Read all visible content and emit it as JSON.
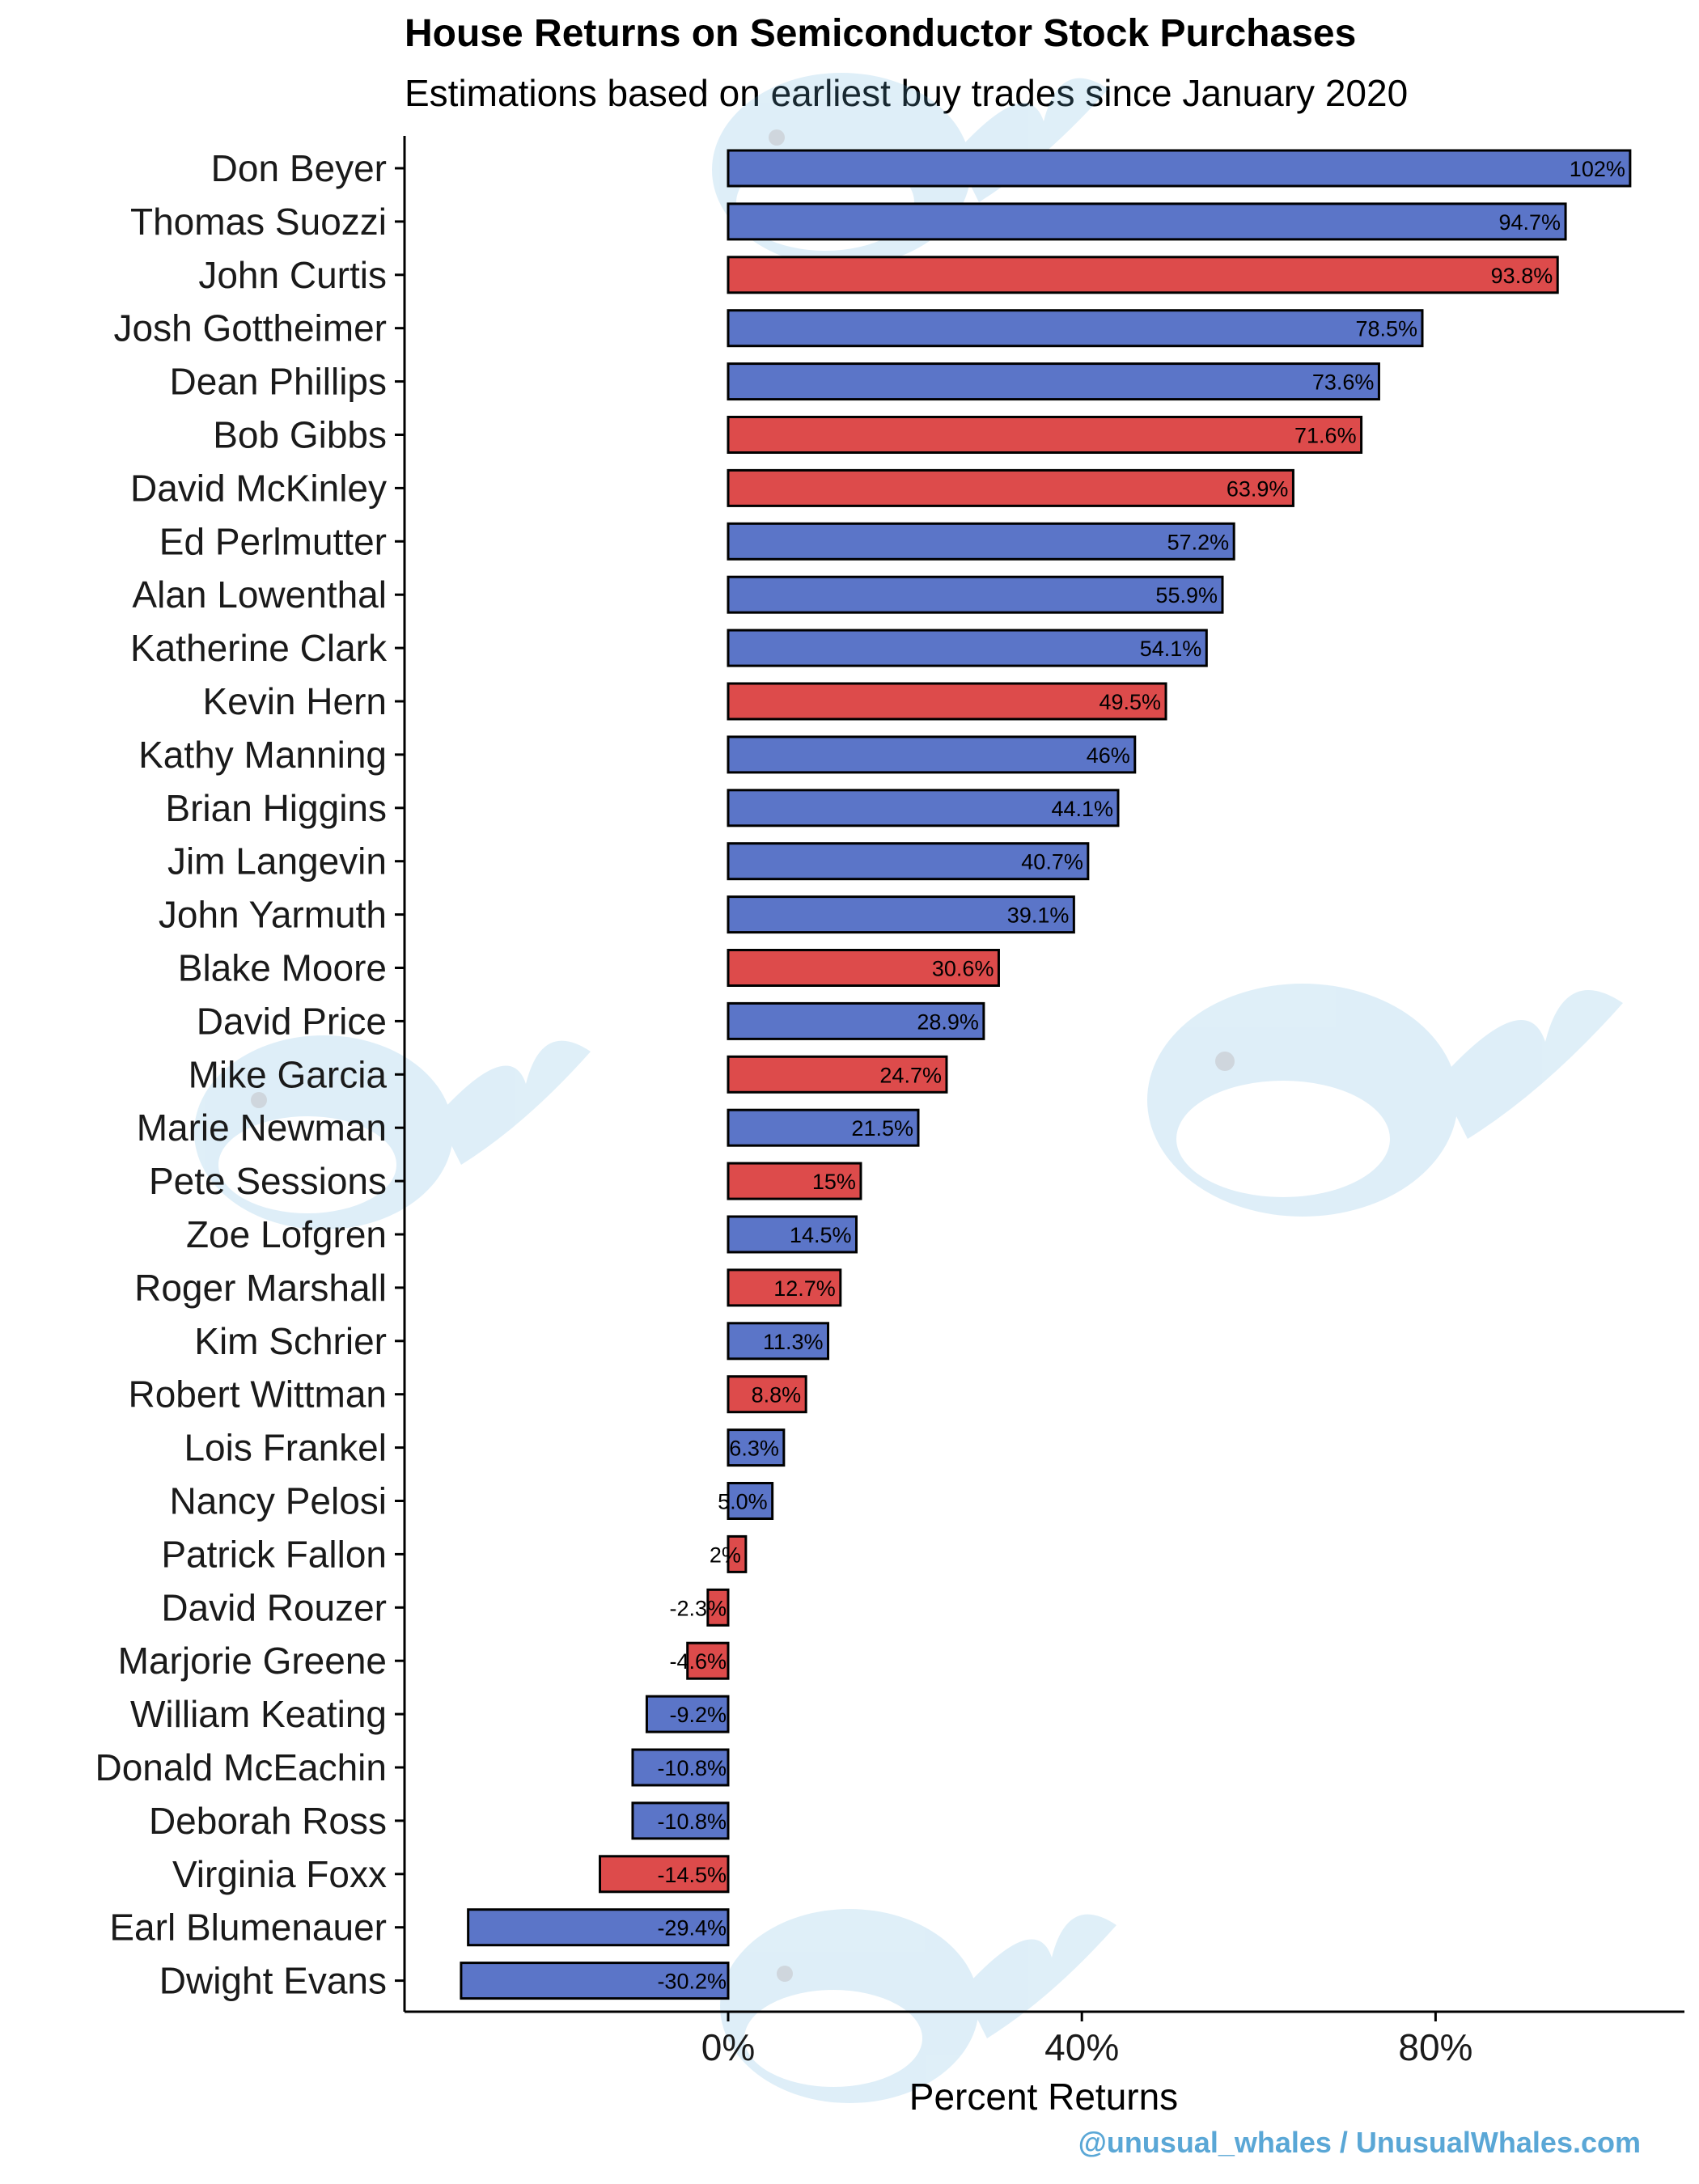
{
  "chart_data": {
    "type": "bar",
    "orientation": "horizontal",
    "title": "House Returns on Semiconductor Stock Purchases",
    "subtitle": "Estimations based on earliest buy trades since January 2020",
    "xlabel": "Percent Returns",
    "ylabel": "",
    "xlim": [
      -33,
      108
    ],
    "xticks": [
      0,
      40,
      80
    ],
    "xtick_labels": [
      "0%",
      "40%",
      "80%"
    ],
    "grid": false,
    "legend": "none",
    "party_colors": {
      "blue": "#5b75c8",
      "red": "#dd4b4b"
    },
    "bar_outline_color": "#000000",
    "categories": [
      "Don Beyer",
      "Thomas Suozzi",
      "John Curtis",
      "Josh Gottheimer",
      "Dean Phillips",
      "Bob Gibbs",
      "David McKinley",
      "Ed Perlmutter",
      "Alan Lowenthal",
      "Katherine Clark",
      "Kevin Hern",
      "Kathy Manning",
      "Brian Higgins",
      "Jim Langevin",
      "John Yarmuth",
      "Blake Moore",
      "David Price",
      "Mike Garcia",
      "Marie Newman",
      "Pete Sessions",
      "Zoe Lofgren",
      "Roger Marshall",
      "Kim Schrier",
      "Robert Wittman",
      "Lois Frankel",
      "Nancy Pelosi",
      "Patrick Fallon",
      "David Rouzer",
      "Marjorie Greene",
      "William Keating",
      "Donald McEachin",
      "Deborah Ross",
      "Virginia Foxx",
      "Earl Blumenauer",
      "Dwight Evans"
    ],
    "values": [
      102,
      94.7,
      93.8,
      78.5,
      73.6,
      71.6,
      63.9,
      57.2,
      55.9,
      54.1,
      49.5,
      46,
      44.1,
      40.7,
      39.1,
      30.6,
      28.9,
      24.7,
      21.5,
      15,
      14.5,
      12.7,
      11.3,
      8.8,
      6.3,
      5.0,
      2,
      -2.3,
      -4.6,
      -9.2,
      -10.8,
      -10.8,
      -14.5,
      -29.4,
      -30.2
    ],
    "data_labels": [
      "102%",
      "94.7%",
      "93.8%",
      "78.5%",
      "73.6%",
      "71.6%",
      "63.9%",
      "57.2%",
      "55.9%",
      "54.1%",
      "49.5%",
      "46%",
      "44.1%",
      "40.7%",
      "39.1%",
      "30.6%",
      "28.9%",
      "24.7%",
      "21.5%",
      "15%",
      "14.5%",
      "12.7%",
      "11.3%",
      "8.8%",
      "6.3%",
      "5.0%",
      "2%",
      "-2.3%",
      "-4.6%",
      "-9.2%",
      "-10.8%",
      "-10.8%",
      "-14.5%",
      "-29.4%",
      "-30.2%"
    ],
    "party": [
      "blue",
      "blue",
      "red",
      "blue",
      "blue",
      "red",
      "red",
      "blue",
      "blue",
      "blue",
      "red",
      "blue",
      "blue",
      "blue",
      "blue",
      "red",
      "blue",
      "red",
      "blue",
      "red",
      "blue",
      "red",
      "blue",
      "red",
      "blue",
      "blue",
      "red",
      "red",
      "red",
      "blue",
      "blue",
      "blue",
      "red",
      "blue",
      "blue"
    ]
  },
  "watermark": "@unusual_whales / UnusualWhales.com"
}
